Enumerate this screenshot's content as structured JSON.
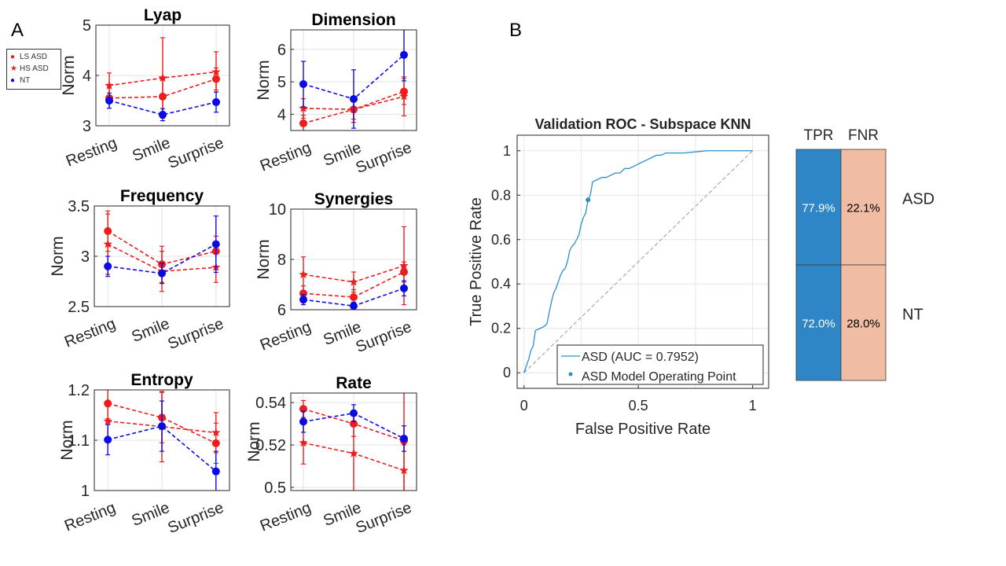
{
  "panel_labels": {
    "a": "A",
    "b": "B"
  },
  "legend": {
    "items": [
      {
        "label": "LS ASD",
        "marker": "circle",
        "color": "#ee1c1c"
      },
      {
        "label": "HS ASD",
        "marker": "star",
        "color": "#ee1c1c"
      },
      {
        "label": "NT",
        "marker": "circle",
        "color": "#0a0ae6"
      }
    ]
  },
  "colors": {
    "red": "#ee1c1c",
    "blue": "#0a0ae6",
    "roc": "#2c8fc9",
    "tpr_cell": "#2e86c6",
    "fnr_cell": "#f0bda4"
  },
  "chart_data": [
    {
      "type": "line",
      "title": "Lyap",
      "ylabel": "Norm",
      "categories": [
        "Resting",
        "Smile",
        "Surprise"
      ],
      "ylim": [
        3,
        5
      ],
      "yticks": [
        3,
        4,
        5
      ],
      "ytick_labels": [
        "3",
        "4",
        "5"
      ],
      "series": [
        {
          "name": "LS ASD",
          "values": [
            3.55,
            3.58,
            3.93
          ],
          "err": [
            0.2,
            0.35,
            0.22
          ]
        },
        {
          "name": "HS ASD",
          "values": [
            3.8,
            3.95,
            4.07
          ],
          "err": [
            0.25,
            0.8,
            0.4
          ]
        },
        {
          "name": "NT",
          "values": [
            3.5,
            3.22,
            3.47
          ],
          "err": [
            0.15,
            0.12,
            0.2
          ]
        }
      ]
    },
    {
      "type": "line",
      "title": "Dimension",
      "ylabel": "Norm",
      "categories": [
        "Resting",
        "Smile",
        "Surprise"
      ],
      "ylim": [
        3.5,
        6.6
      ],
      "yticks": [
        4,
        5,
        6
      ],
      "ytick_labels": [
        "4",
        "5",
        "6"
      ],
      "series": [
        {
          "name": "LS ASD",
          "values": [
            3.72,
            4.15,
            4.7
          ],
          "err": [
            0.25,
            0.3,
            0.4
          ]
        },
        {
          "name": "HS ASD",
          "values": [
            4.18,
            4.15,
            4.55
          ],
          "err": [
            0.3,
            0.4,
            0.6
          ]
        },
        {
          "name": "NT",
          "values": [
            4.93,
            4.47,
            5.83
          ],
          "err": [
            0.7,
            0.9,
            0.8
          ]
        }
      ]
    },
    {
      "type": "line",
      "title": "Frequency",
      "ylabel": "Norm",
      "categories": [
        "Resting",
        "Smile",
        "Surprise"
      ],
      "ylim": [
        2.5,
        3.5
      ],
      "yticks": [
        2.5,
        3,
        3.5
      ],
      "ytick_labels": [
        "2.5",
        "3",
        "3.5"
      ],
      "series": [
        {
          "name": "LS ASD",
          "values": [
            3.25,
            2.92,
            3.05
          ],
          "err": [
            0.2,
            0.18,
            0.15
          ]
        },
        {
          "name": "HS ASD",
          "values": [
            3.12,
            2.85,
            2.89
          ],
          "err": [
            0.3,
            0.2,
            0.15
          ]
        },
        {
          "name": "NT",
          "values": [
            2.9,
            2.83,
            3.12
          ],
          "err": [
            0.1,
            0.1,
            0.28
          ]
        }
      ]
    },
    {
      "type": "line",
      "title": "Synergies",
      "ylabel": "Norm",
      "categories": [
        "Resting",
        "Smile",
        "Surprise"
      ],
      "ylim": [
        6,
        10
      ],
      "yticks": [
        6,
        8,
        10
      ],
      "ytick_labels": [
        "6",
        "8",
        "10"
      ],
      "series": [
        {
          "name": "LS ASD",
          "values": [
            6.65,
            6.5,
            7.5
          ],
          "err": [
            0.3,
            0.3,
            0.4
          ]
        },
        {
          "name": "HS ASD",
          "values": [
            7.4,
            7.1,
            7.75
          ],
          "err": [
            0.7,
            0.4,
            1.55
          ]
        },
        {
          "name": "NT",
          "values": [
            6.4,
            6.15,
            6.85
          ],
          "err": [
            0.2,
            0.15,
            0.3
          ]
        }
      ]
    },
    {
      "type": "line",
      "title": "Entropy",
      "ylabel": "Norm",
      "categories": [
        "Resting",
        "Smile",
        "Surprise"
      ],
      "ylim": [
        1.0,
        1.2
      ],
      "yticks": [
        1.0,
        1.1,
        1.2
      ],
      "ytick_labels": [
        "1",
        "1.1",
        "1.2"
      ],
      "series": [
        {
          "name": "LS ASD",
          "values": [
            1.173,
            1.145,
            1.094
          ],
          "err": [
            0.03,
            0.05,
            0.04
          ]
        },
        {
          "name": "HS ASD",
          "values": [
            1.138,
            1.127,
            1.115
          ],
          "err": [
            0.04,
            0.07,
            0.04
          ]
        },
        {
          "name": "NT",
          "values": [
            1.101,
            1.128,
            1.038
          ],
          "err": [
            0.03,
            0.05,
            0.04
          ]
        }
      ]
    },
    {
      "type": "line",
      "title": "Rate",
      "ylabel": "Norm",
      "categories": [
        "Resting",
        "Smile",
        "Surprise"
      ],
      "ylim": [
        0.4985,
        0.5445
      ],
      "yticks": [
        0.5,
        0.52,
        0.54
      ],
      "ytick_labels": [
        "0.5",
        "0.52",
        "0.54"
      ],
      "series": [
        {
          "name": "LS ASD",
          "values": [
            0.537,
            0.53,
            0.522
          ],
          "err": [
            0.004,
            0.006,
            0.025
          ]
        },
        {
          "name": "HS ASD",
          "values": [
            0.521,
            0.516,
            0.508
          ],
          "err": [
            0.01,
            0.018,
            0.012
          ]
        },
        {
          "name": "NT",
          "values": [
            0.531,
            0.535,
            0.523
          ],
          "err": [
            0.005,
            0.004,
            0.006
          ]
        }
      ]
    },
    {
      "type": "line",
      "title": "Validation ROC - Subspace KNN",
      "xlabel": "False Positive Rate",
      "ylabel": "True Positive Rate",
      "xlim": [
        -0.03,
        1.07
      ],
      "ylim": [
        -0.07,
        1.07
      ],
      "xticks": [
        0,
        0.5,
        1
      ],
      "xtick_labels": [
        "0",
        "0.5",
        "1"
      ],
      "yticks": [
        0,
        0.2,
        0.4,
        0.6,
        0.8,
        1
      ],
      "ytick_labels": [
        "0",
        "0.2",
        "0.4",
        "0.6",
        "0.8",
        "1"
      ],
      "series": [
        {
          "name": "ASD (AUC = 0.7952)",
          "x": [
            0,
            0.01,
            0.02,
            0.03,
            0.04,
            0.05,
            0.07,
            0.09,
            0.1,
            0.11,
            0.12,
            0.13,
            0.14,
            0.15,
            0.16,
            0.17,
            0.18,
            0.19,
            0.2,
            0.21,
            0.22,
            0.23,
            0.24,
            0.25,
            0.26,
            0.27,
            0.28,
            0.29,
            0.3,
            0.32,
            0.34,
            0.36,
            0.38,
            0.4,
            0.42,
            0.44,
            0.46,
            0.48,
            0.5,
            0.52,
            0.54,
            0.56,
            0.58,
            0.6,
            0.62,
            0.65,
            0.7,
            0.8,
            0.9,
            1
          ],
          "y": [
            0,
            0.03,
            0.06,
            0.1,
            0.12,
            0.19,
            0.2,
            0.21,
            0.22,
            0.27,
            0.32,
            0.36,
            0.38,
            0.41,
            0.44,
            0.46,
            0.47,
            0.5,
            0.55,
            0.57,
            0.58,
            0.6,
            0.62,
            0.67,
            0.7,
            0.72,
            0.78,
            0.8,
            0.86,
            0.87,
            0.88,
            0.88,
            0.89,
            0.9,
            0.9,
            0.92,
            0.92,
            0.93,
            0.94,
            0.95,
            0.96,
            0.97,
            0.98,
            0.98,
            0.99,
            0.99,
            0.99,
            1,
            1,
            1
          ]
        },
        {
          "name": "diagonal",
          "x": [
            0,
            1
          ],
          "y": [
            0,
            1
          ]
        }
      ],
      "operating_point": {
        "label": "ASD Model Operating Point",
        "x": 0.28,
        "y": 0.779
      },
      "legend_position": "bottom-right"
    },
    {
      "type": "table",
      "title": "TPR / FNR",
      "columns": [
        "TPR",
        "FNR"
      ],
      "rows": [
        {
          "label": "ASD",
          "values": [
            "77.9%",
            "22.1%"
          ]
        },
        {
          "label": "NT",
          "values": [
            "72.0%",
            "28.0%"
          ]
        }
      ]
    }
  ]
}
